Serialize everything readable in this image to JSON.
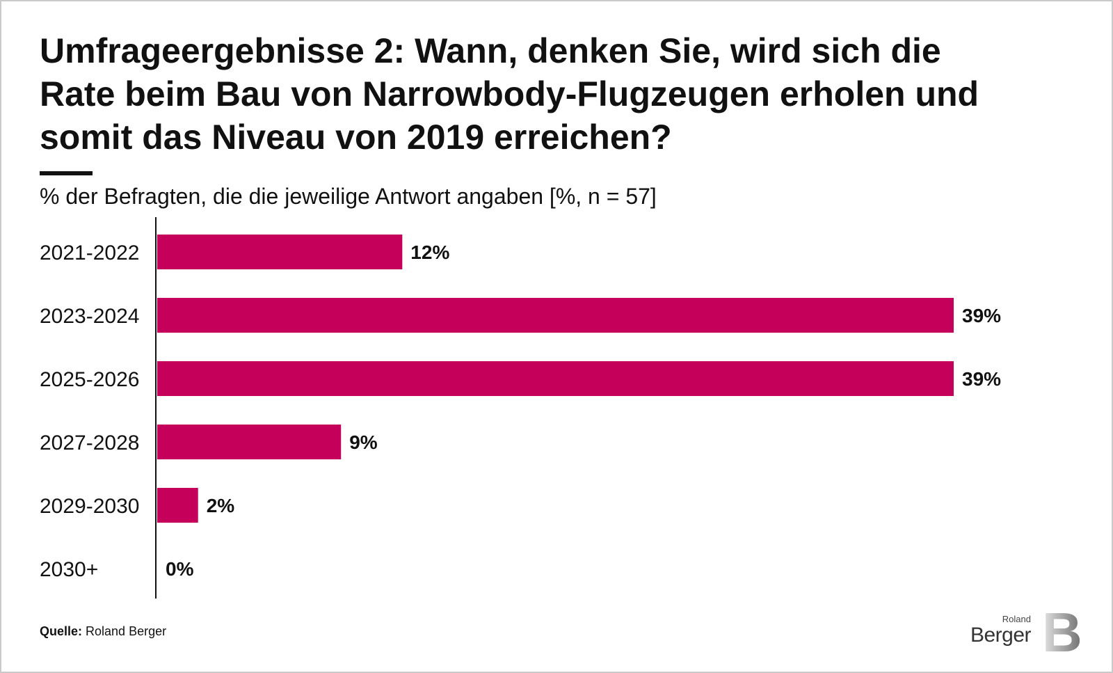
{
  "title": "Umfrageergebnisse 2: Wann, denken Sie, wird sich die Rate beim Bau von Narrowbody-Flugzeugen erholen und somit das Niveau von 2019 erreichen?",
  "subtitle": "% der Befragten, die die jeweilige Antwort angaben [%, n = 57]",
  "source": {
    "label": "Quelle:",
    "text": "Roland Berger"
  },
  "logo": {
    "line1": "Roland",
    "line2": "Berger",
    "mark": "B"
  },
  "colors": {
    "bar": "#c4005a",
    "text": "#111111",
    "axis": "#111111"
  },
  "chart_data": {
    "type": "bar",
    "orientation": "horizontal",
    "title": "Umfrageergebnisse 2: Wann, denken Sie, wird sich die Rate beim Bau von Narrowbody-Flugzeugen erholen und somit das Niveau von 2019 erreichen?",
    "subtitle": "% der Befragten, die die jeweilige Antwort angaben [%, n = 57]",
    "categories": [
      "2021-2022",
      "2023-2024",
      "2025-2026",
      "2027-2028",
      "2029-2030",
      "2030+"
    ],
    "values": [
      12,
      39,
      39,
      9,
      2,
      0
    ],
    "value_labels": [
      "12%",
      "39%",
      "39%",
      "9%",
      "2%",
      "0%"
    ],
    "unit": "%",
    "xlim": [
      0,
      39
    ],
    "xlabel": "",
    "ylabel": "",
    "grid": false,
    "legend": "none"
  }
}
